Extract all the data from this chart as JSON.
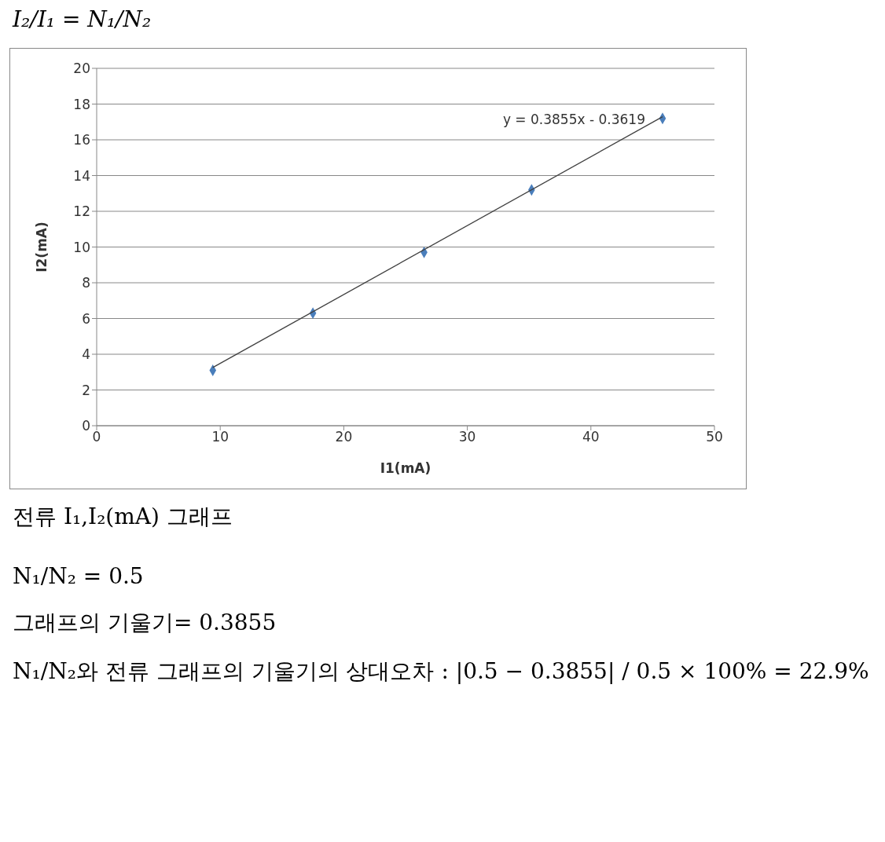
{
  "chart_data": {
    "type": "scatter",
    "xlabel": "I1(mA)",
    "ylabel": "I2(mA)",
    "series": [
      {
        "color": "#4a7ebb",
        "marker": "diamond",
        "x": [
          9.4,
          17.5,
          26.5,
          35.2,
          45.8
        ],
        "values": [
          3.1,
          6.3,
          9.7,
          13.2,
          17.2
        ]
      },
      {
        "type": "line",
        "marker": "none",
        "color": "#404040",
        "x": [
          9.4,
          45.8
        ],
        "values": [
          3.26,
          17.29
        ]
      }
    ],
    "xlim": [
      0,
      50
    ],
    "xticks": [
      0,
      10,
      20,
      30,
      40,
      50
    ],
    "ylim": [
      0,
      20
    ],
    "yticks": [
      0,
      2,
      4,
      6,
      8,
      10,
      12,
      14,
      16,
      18,
      20
    ],
    "grid": "y",
    "legend": false,
    "annotations": [
      "I₂/I₁ = N₁/N₂",
      "y = 0.3855x - 0.3619",
      "전류 I₁,I₂(mA) 그래프",
      "N₁/N₂ = 0.5",
      "그래프의 기울기= 0.3855",
      "N₁/N₂와 전류 그래프의 기울기의 상대오차 : |0.5 − 0.3855| / 0.5 × 100% = 22.9%"
    ]
  }
}
